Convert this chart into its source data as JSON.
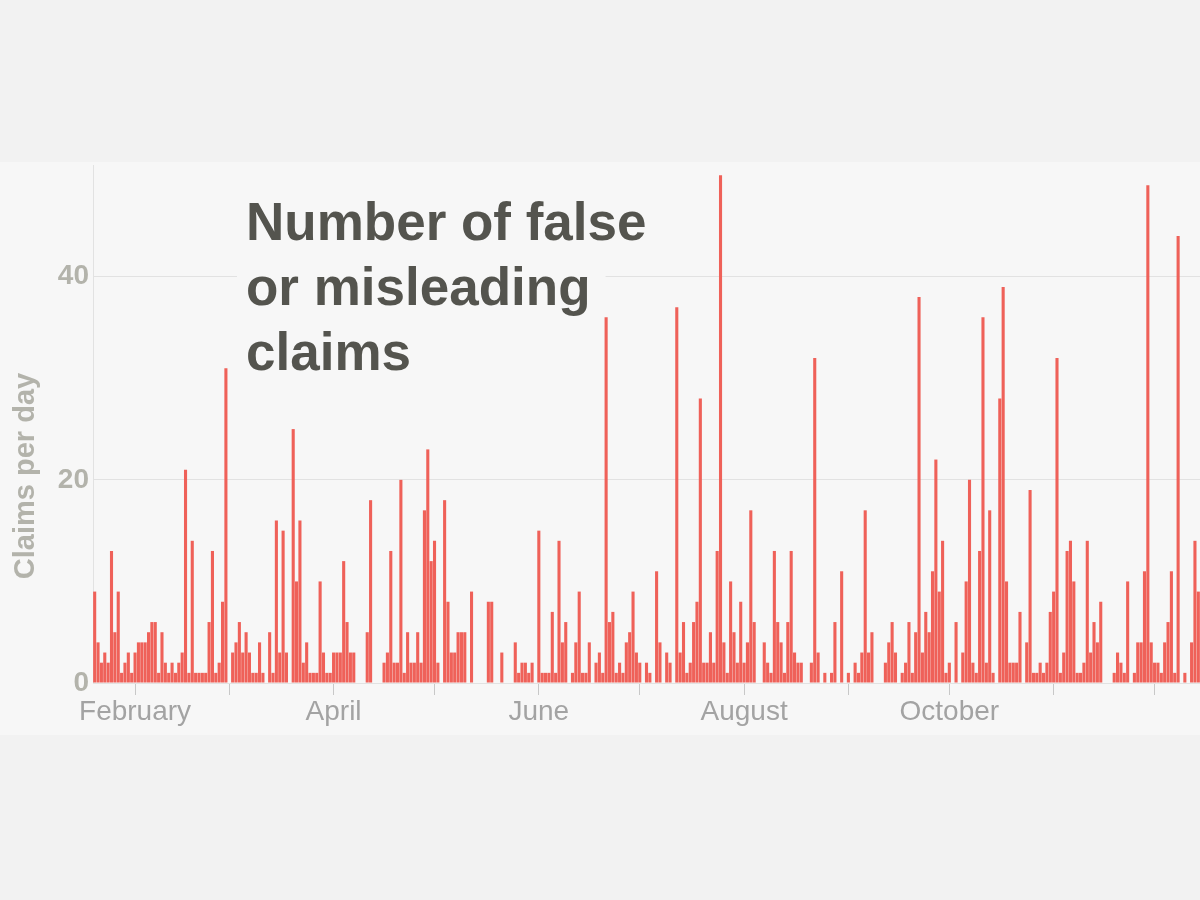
{
  "chart_data": {
    "type": "bar",
    "title": "Number of false or misleading claims",
    "ylabel": "Claims per day",
    "color": "#ef6159",
    "grid": "y",
    "xlim": [
      "--01-19T12:00",
      "--12-14T12:00"
    ],
    "xticks": [
      {
        "value": "--02-01",
        "label": "February"
      },
      {
        "value": "--03-01",
        "label": null
      },
      {
        "value": "--04-01",
        "label": "April"
      },
      {
        "value": "--05-01",
        "label": null
      },
      {
        "value": "--06-01",
        "label": "June"
      },
      {
        "value": "--07-01",
        "label": null
      },
      {
        "value": "--08-01",
        "label": "August"
      },
      {
        "value": "--09-01",
        "label": null
      },
      {
        "value": "--10-01",
        "label": "October"
      },
      {
        "value": "--11-01",
        "label": null
      },
      {
        "value": "--12-01",
        "label": null
      }
    ],
    "ylim": [
      0,
      51
    ],
    "yticks": [
      0,
      20,
      40
    ],
    "x": [
      "--01-20",
      "--01-21",
      "--01-22",
      "--01-23",
      "--01-24",
      "--01-25",
      "--01-26",
      "--01-27",
      "--01-28",
      "--01-29",
      "--01-30",
      "--01-31",
      "--02-01",
      "--02-02",
      "--02-03",
      "--02-04",
      "--02-05",
      "--02-06",
      "--02-07",
      "--02-08",
      "--02-09",
      "--02-10",
      "--02-11",
      "--02-12",
      "--02-13",
      "--02-14",
      "--02-15",
      "--02-16",
      "--02-17",
      "--02-18",
      "--02-19",
      "--02-20",
      "--02-21",
      "--02-22",
      "--02-23",
      "--02-24",
      "--02-25",
      "--02-26",
      "--02-27",
      "--02-28",
      "--03-01",
      "--03-02",
      "--03-03",
      "--03-04",
      "--03-05",
      "--03-06",
      "--03-07",
      "--03-08",
      "--03-09",
      "--03-10",
      "--03-11",
      "--03-12",
      "--03-13",
      "--03-14",
      "--03-15",
      "--03-16",
      "--03-17",
      "--03-18",
      "--03-19",
      "--03-20",
      "--03-21",
      "--03-22",
      "--03-23",
      "--03-24",
      "--03-25",
      "--03-26",
      "--03-27",
      "--03-28",
      "--03-29",
      "--03-30",
      "--03-31",
      "--04-01",
      "--04-02",
      "--04-03",
      "--04-04",
      "--04-05",
      "--04-06",
      "--04-07",
      "--04-08",
      "--04-09",
      "--04-10",
      "--04-11",
      "--04-12",
      "--04-13",
      "--04-14",
      "--04-15",
      "--04-16",
      "--04-17",
      "--04-18",
      "--04-19",
      "--04-20",
      "--04-21",
      "--04-22",
      "--04-23",
      "--04-24",
      "--04-25",
      "--04-26",
      "--04-27",
      "--04-28",
      "--04-29",
      "--04-30",
      "--05-01",
      "--05-02",
      "--05-03",
      "--05-04",
      "--05-05",
      "--05-06",
      "--05-07",
      "--05-08",
      "--05-09",
      "--05-10",
      "--05-11",
      "--05-12",
      "--05-13",
      "--05-14",
      "--05-15",
      "--05-16",
      "--05-17",
      "--05-18",
      "--05-19",
      "--05-20",
      "--05-21",
      "--05-22",
      "--05-23",
      "--05-24",
      "--05-25",
      "--05-26",
      "--05-27",
      "--05-28",
      "--05-29",
      "--05-30",
      "--05-31",
      "--06-01",
      "--06-02",
      "--06-03",
      "--06-04",
      "--06-05",
      "--06-06",
      "--06-07",
      "--06-08",
      "--06-09",
      "--06-10",
      "--06-11",
      "--06-12",
      "--06-13",
      "--06-14",
      "--06-15",
      "--06-16",
      "--06-17",
      "--06-18",
      "--06-19",
      "--06-20",
      "--06-21",
      "--06-22",
      "--06-23",
      "--06-24",
      "--06-25",
      "--06-26",
      "--06-27",
      "--06-28",
      "--06-29",
      "--06-30",
      "--07-01",
      "--07-02",
      "--07-03",
      "--07-04",
      "--07-05",
      "--07-06",
      "--07-07",
      "--07-08",
      "--07-09",
      "--07-10",
      "--07-11",
      "--07-12",
      "--07-13",
      "--07-14",
      "--07-15",
      "--07-16",
      "--07-17",
      "--07-18",
      "--07-19",
      "--07-20",
      "--07-21",
      "--07-22",
      "--07-23",
      "--07-24",
      "--07-25",
      "--07-26",
      "--07-27",
      "--07-28",
      "--07-29",
      "--07-30",
      "--07-31",
      "--08-01",
      "--08-02",
      "--08-03",
      "--08-04",
      "--08-05",
      "--08-06",
      "--08-07",
      "--08-08",
      "--08-09",
      "--08-10",
      "--08-11",
      "--08-12",
      "--08-13",
      "--08-14",
      "--08-15",
      "--08-16",
      "--08-17",
      "--08-18",
      "--08-19",
      "--08-20",
      "--08-21",
      "--08-22",
      "--08-23",
      "--08-24",
      "--08-25",
      "--08-26",
      "--08-27",
      "--08-28",
      "--08-29",
      "--08-30",
      "--08-31",
      "--09-01",
      "--09-02",
      "--09-03",
      "--09-04",
      "--09-05",
      "--09-06",
      "--09-07",
      "--09-08",
      "--09-09",
      "--09-10",
      "--09-11",
      "--09-12",
      "--09-13",
      "--09-14",
      "--09-15",
      "--09-16",
      "--09-17",
      "--09-18",
      "--09-19",
      "--09-20",
      "--09-21",
      "--09-22",
      "--09-23",
      "--09-24",
      "--09-25",
      "--09-26",
      "--09-27",
      "--09-28",
      "--09-29",
      "--09-30",
      "--10-01",
      "--10-02",
      "--10-03",
      "--10-04",
      "--10-05",
      "--10-06",
      "--10-07",
      "--10-08",
      "--10-09",
      "--10-10",
      "--10-11",
      "--10-12",
      "--10-13",
      "--10-14",
      "--10-15",
      "--10-16",
      "--10-17",
      "--10-18",
      "--10-19",
      "--10-20",
      "--10-21",
      "--10-22",
      "--10-23",
      "--10-24",
      "--10-25",
      "--10-26",
      "--10-27",
      "--10-28",
      "--10-29",
      "--10-30",
      "--10-31",
      "--11-01",
      "--11-02",
      "--11-03",
      "--11-04",
      "--11-05",
      "--11-06",
      "--11-07",
      "--11-08",
      "--11-09",
      "--11-10",
      "--11-11",
      "--11-12",
      "--11-13",
      "--11-14",
      "--11-15",
      "--11-16",
      "--11-17",
      "--11-18",
      "--11-19",
      "--11-20",
      "--11-21",
      "--11-22",
      "--11-23",
      "--11-24",
      "--11-25",
      "--11-26",
      "--11-27",
      "--11-28",
      "--11-29",
      "--11-30",
      "--12-01",
      "--12-02",
      "--12-03",
      "--12-04",
      "--12-05",
      "--12-06",
      "--12-07",
      "--12-08",
      "--12-09",
      "--12-10",
      "--12-11",
      "--12-12",
      "--12-13",
      "--12-14"
    ],
    "values": [
      9,
      4,
      2,
      3,
      2,
      13,
      5,
      9,
      1,
      2,
      3,
      1,
      3,
      4,
      4,
      4,
      5,
      6,
      6,
      1,
      5,
      2,
      1,
      2,
      1,
      2,
      3,
      21,
      1,
      14,
      1,
      1,
      1,
      1,
      6,
      13,
      1,
      2,
      8,
      31,
      0,
      3,
      4,
      6,
      3,
      5,
      3,
      1,
      1,
      4,
      1,
      0,
      5,
      1,
      16,
      3,
      15,
      3,
      0,
      25,
      10,
      16,
      2,
      4,
      1,
      1,
      1,
      10,
      3,
      1,
      1,
      3,
      3,
      3,
      12,
      6,
      3,
      3,
      0,
      0,
      0,
      5,
      18,
      0,
      0,
      0,
      2,
      3,
      13,
      2,
      2,
      20,
      1,
      5,
      2,
      2,
      5,
      2,
      17,
      23,
      12,
      14,
      2,
      0,
      18,
      8,
      3,
      3,
      5,
      5,
      5,
      0,
      9,
      0,
      0,
      0,
      0,
      8,
      8,
      0,
      0,
      3,
      0,
      0,
      0,
      4,
      1,
      2,
      2,
      1,
      2,
      0,
      15,
      1,
      1,
      1,
      7,
      1,
      14,
      4,
      6,
      0,
      1,
      4,
      9,
      1,
      1,
      4,
      0,
      2,
      3,
      1,
      36,
      6,
      7,
      1,
      2,
      1,
      4,
      5,
      9,
      3,
      2,
      0,
      2,
      1,
      0,
      11,
      4,
      0,
      3,
      2,
      0,
      37,
      3,
      6,
      1,
      2,
      6,
      8,
      28,
      2,
      2,
      5,
      2,
      13,
      50,
      4,
      1,
      10,
      5,
      2,
      8,
      2,
      4,
      17,
      6,
      0,
      0,
      4,
      2,
      1,
      13,
      6,
      4,
      1,
      6,
      13,
      3,
      2,
      2,
      0,
      0,
      2,
      32,
      3,
      0,
      1,
      0,
      1,
      6,
      0,
      11,
      0,
      1,
      0,
      2,
      1,
      3,
      17,
      3,
      5,
      0,
      0,
      0,
      2,
      4,
      6,
      3,
      0,
      1,
      2,
      6,
      1,
      5,
      38,
      3,
      7,
      5,
      11,
      22,
      9,
      14,
      1,
      2,
      0,
      6,
      0,
      3,
      10,
      20,
      2,
      1,
      13,
      36,
      2,
      17,
      1,
      0,
      28,
      39,
      10,
      2,
      2,
      2,
      7,
      0,
      4,
      19,
      1,
      1,
      2,
      1,
      2,
      7,
      9,
      32,
      1,
      3,
      13,
      14,
      10,
      1,
      1,
      2,
      14,
      3,
      6,
      4,
      8,
      0,
      0,
      0,
      1,
      3,
      2,
      1,
      10,
      0,
      1,
      4,
      4,
      11,
      49,
      4,
      2,
      2,
      1,
      4,
      6,
      11,
      1,
      44,
      0,
      1,
      0,
      4,
      14,
      9
    ]
  }
}
